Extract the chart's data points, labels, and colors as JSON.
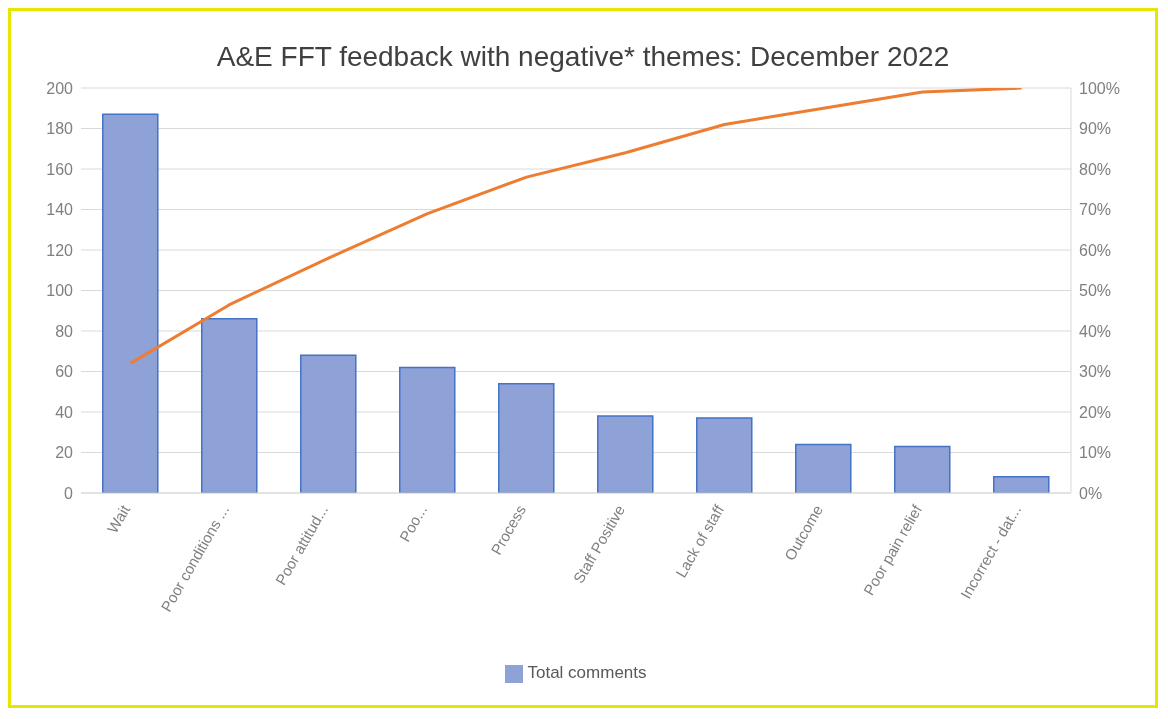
{
  "chart_data": {
    "type": "bar",
    "title": "A&E FFT feedback with negative* themes: December 2022",
    "categories": [
      "Wait",
      "Poor conditions ...",
      "Poor attitud...",
      "Poo...",
      "Process",
      "Staff Positive",
      "Lack of staff",
      "Outcome",
      "Poor pain relief",
      "Incorrect - dat..."
    ],
    "series": [
      {
        "name": "Total comments",
        "color": "#8ea2d8",
        "values": [
          187,
          86,
          68,
          62,
          54,
          38,
          37,
          24,
          23,
          8
        ]
      },
      {
        "type": "line",
        "axis": "y2",
        "color": "#ed7d31",
        "values": [
          32,
          46.5,
          58,
          69,
          78,
          84,
          91,
          95,
          99,
          100
        ]
      }
    ],
    "ylim": [
      0,
      200
    ],
    "yticks": [
      0,
      20,
      40,
      60,
      80,
      100,
      120,
      140,
      160,
      180,
      200
    ],
    "y2lim": [
      0,
      100
    ],
    "y2ticks": [
      {
        "value": 0,
        "label": "0%"
      },
      {
        "value": 10,
        "label": "10%"
      },
      {
        "value": 20,
        "label": "20%"
      },
      {
        "value": 30,
        "label": "30%"
      },
      {
        "value": 40,
        "label": "40%"
      },
      {
        "value": 50,
        "label": "50%"
      },
      {
        "value": 60,
        "label": "60%"
      },
      {
        "value": 70,
        "label": "70%"
      },
      {
        "value": 80,
        "label": "80%"
      },
      {
        "value": 90,
        "label": "90%"
      },
      {
        "value": 100,
        "label": "100%"
      }
    ],
    "grid": "y",
    "legend": "bottom",
    "marker": "none"
  }
}
